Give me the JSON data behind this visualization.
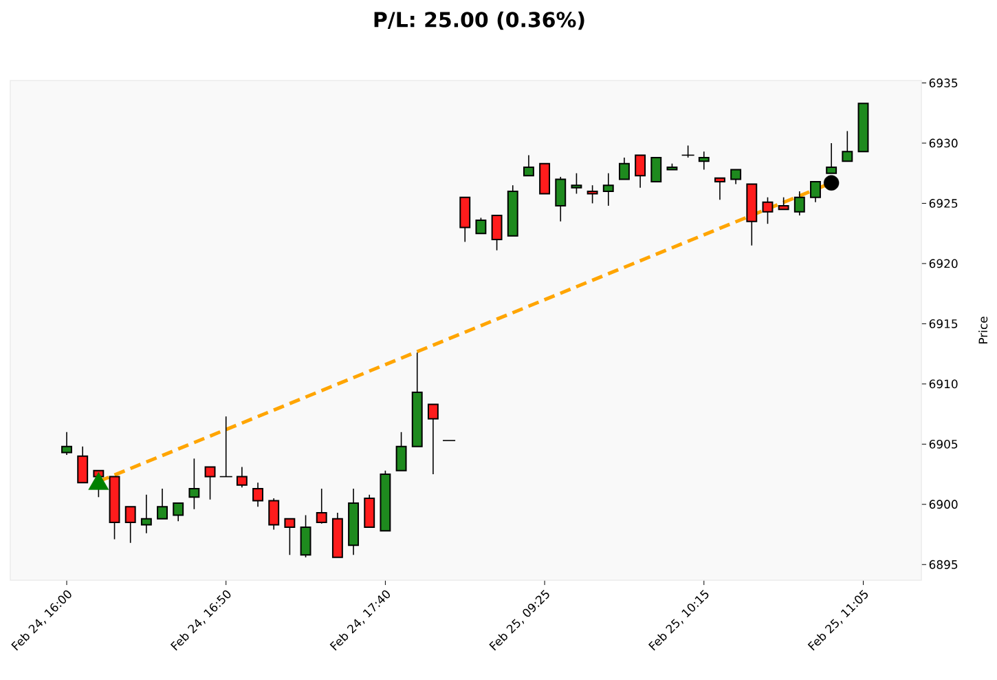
{
  "chart_data": {
    "type": "candlestick",
    "title": "P/L: 25.00 (0.36%)",
    "ylabel": "Price",
    "categories": [
      "Feb 24, 16:00",
      null,
      null,
      null,
      null,
      null,
      null,
      null,
      null,
      null,
      "Feb 24, 16:50",
      null,
      null,
      null,
      null,
      null,
      null,
      null,
      null,
      null,
      "Feb 24, 17:40",
      null,
      null,
      null,
      null,
      null,
      null,
      null,
      null,
      null,
      "Feb 25, 09:25",
      null,
      null,
      null,
      null,
      null,
      null,
      null,
      null,
      null,
      "Feb 25, 10:15",
      null,
      null,
      null,
      null,
      null,
      null,
      null,
      null,
      null,
      "Feb 25, 11:05"
    ],
    "ohlc": [
      [
        6904.3,
        6906.0,
        6904.1,
        6904.8
      ],
      [
        6904.0,
        6904.8,
        6901.8,
        6901.8
      ],
      [
        6902.8,
        6902.8,
        6900.6,
        6902.3
      ],
      [
        6902.3,
        6902.3,
        6897.1,
        6898.5
      ],
      [
        6899.8,
        6899.8,
        6896.8,
        6898.5
      ],
      [
        6898.3,
        6900.8,
        6897.6,
        6898.8
      ],
      [
        6898.8,
        6901.3,
        6898.8,
        6899.8
      ],
      [
        6899.1,
        6900.1,
        6898.6,
        6900.1
      ],
      [
        6900.6,
        6903.8,
        6899.6,
        6901.3
      ],
      [
        6903.1,
        6903.1,
        6900.4,
        6902.3
      ],
      [
        6902.3,
        6907.3,
        6902.3,
        6902.3
      ],
      [
        6902.3,
        6903.1,
        6901.4,
        6901.6
      ],
      [
        6901.3,
        6901.8,
        6899.8,
        6900.3
      ],
      [
        6900.3,
        6900.5,
        6897.9,
        6898.3
      ],
      [
        6898.8,
        6898.8,
        6895.8,
        6898.1
      ],
      [
        6895.8,
        6899.1,
        6895.6,
        6898.1
      ],
      [
        6899.3,
        6901.3,
        6898.4,
        6898.5
      ],
      [
        6898.8,
        6899.3,
        6895.6,
        6895.6
      ],
      [
        6896.6,
        6901.3,
        6895.8,
        6900.1
      ],
      [
        6900.5,
        6900.8,
        6898.1,
        6898.1
      ],
      [
        6897.8,
        6902.8,
        6897.8,
        6902.5
      ],
      [
        6902.8,
        6906.0,
        6902.8,
        6904.8
      ],
      [
        6904.8,
        6912.6,
        6904.8,
        6909.3
      ],
      [
        6908.3,
        6908.3,
        6902.5,
        6907.1
      ],
      [
        6905.3,
        6905.3,
        6905.3,
        6905.3
      ],
      [
        6925.5,
        6925.5,
        6921.8,
        6923.0
      ],
      [
        6922.5,
        6923.8,
        6922.5,
        6923.6
      ],
      [
        6924.0,
        6924.0,
        6921.1,
        6922.0
      ],
      [
        6922.3,
        6926.5,
        6922.3,
        6926.0
      ],
      [
        6927.3,
        6929.0,
        6927.3,
        6928.0
      ],
      [
        6928.3,
        6928.3,
        6925.8,
        6925.8
      ],
      [
        6924.8,
        6927.2,
        6923.5,
        6927.0
      ],
      [
        6926.3,
        6927.5,
        6925.8,
        6926.5
      ],
      [
        6926.0,
        6926.5,
        6925.0,
        6925.8
      ],
      [
        6926.0,
        6927.5,
        6924.8,
        6926.5
      ],
      [
        6927.0,
        6928.8,
        6927.0,
        6928.3
      ],
      [
        6929.0,
        6929.0,
        6926.3,
        6927.3
      ],
      [
        6926.8,
        6928.8,
        6926.8,
        6928.8
      ],
      [
        6927.8,
        6928.3,
        6927.8,
        6928.0
      ],
      [
        6929.0,
        6929.8,
        6928.8,
        6929.0
      ],
      [
        6928.5,
        6929.3,
        6927.8,
        6928.8
      ],
      [
        6927.1,
        6927.1,
        6925.3,
        6926.8
      ],
      [
        6927.0,
        6927.8,
        6926.6,
        6927.8
      ],
      [
        6926.6,
        6926.6,
        6921.5,
        6923.5
      ],
      [
        6925.1,
        6925.5,
        6923.3,
        6924.3
      ],
      [
        6924.8,
        6925.5,
        6924.5,
        6924.5
      ],
      [
        6924.3,
        6926.0,
        6924.0,
        6925.5
      ],
      [
        6925.5,
        6926.8,
        6925.1,
        6926.8
      ],
      [
        6927.5,
        6930.0,
        6927.5,
        6928.0
      ],
      [
        6928.5,
        6931.0,
        6928.5,
        6929.3
      ],
      [
        6929.3,
        6933.3,
        6929.3,
        6933.3
      ]
    ],
    "colors": [
      "#1e8a1e",
      "#ff1c1c",
      "#ff1c1c",
      "#ff1c1c",
      "#ff1c1c",
      "#1e8a1e",
      "#1e8a1e",
      "#1e8a1e",
      "#1e8a1e",
      "#ff1c1c",
      "#000000",
      "#ff1c1c",
      "#ff1c1c",
      "#ff1c1c",
      "#ff1c1c",
      "#1e8a1e",
      "#ff1c1c",
      "#ff1c1c",
      "#1e8a1e",
      "#ff1c1c",
      "#1e8a1e",
      "#1e8a1e",
      "#1e8a1e",
      "#ff1c1c",
      "#000000",
      "#ff1c1c",
      "#1e8a1e",
      "#ff1c1c",
      "#1e8a1e",
      "#1e8a1e",
      "#ff1c1c",
      "#1e8a1e",
      "#1e8a1e",
      "#ff1c1c",
      "#1e8a1e",
      "#1e8a1e",
      "#ff1c1c",
      "#1e8a1e",
      "#1e8a1e",
      "#000000",
      "#1e8a1e",
      "#ff1c1c",
      "#1e8a1e",
      "#ff1c1c",
      "#ff1c1c",
      "#ff1c1c",
      "#1e8a1e",
      "#1e8a1e",
      "#1e8a1e",
      "#1e8a1e",
      "#1e8a1e"
    ],
    "ylim": [
      6893.7,
      6935.2
    ],
    "yticks": [
      6895,
      6900,
      6905,
      6910,
      6915,
      6920,
      6925,
      6930,
      6935
    ],
    "series": [
      {
        "type": "line",
        "values": [
          null,
          null,
          6901.9,
          null,
          null,
          null,
          null,
          null,
          null,
          null,
          null,
          null,
          null,
          null,
          null,
          null,
          null,
          null,
          null,
          null,
          null,
          null,
          null,
          null,
          null,
          null,
          null,
          null,
          null,
          null,
          null,
          null,
          null,
          null,
          null,
          null,
          null,
          null,
          null,
          null,
          null,
          null,
          null,
          null,
          null,
          null,
          null,
          null,
          6926.7,
          null,
          null
        ],
        "color": "#ffa500",
        "line_style": "dashed"
      },
      {
        "type": "scatter",
        "values": [
          null,
          null,
          6901.7,
          null,
          null,
          null,
          null,
          null,
          null,
          null,
          null,
          null,
          null,
          null,
          null,
          null,
          null,
          null,
          null,
          null,
          null,
          null,
          null,
          null,
          null,
          null,
          null,
          null,
          null,
          null,
          null,
          null,
          null,
          null,
          null,
          null,
          null,
          null,
          null,
          null,
          null,
          null,
          null,
          null,
          null,
          null,
          null,
          null,
          null,
          null,
          null
        ],
        "color": "#008000",
        "marker": "triangle"
      },
      {
        "type": "scatter",
        "values": [
          null,
          null,
          null,
          null,
          null,
          null,
          null,
          null,
          null,
          null,
          null,
          null,
          null,
          null,
          null,
          null,
          null,
          null,
          null,
          null,
          null,
          null,
          null,
          null,
          null,
          null,
          null,
          null,
          null,
          null,
          null,
          null,
          null,
          null,
          null,
          null,
          null,
          null,
          null,
          null,
          null,
          null,
          null,
          null,
          null,
          null,
          null,
          null,
          6926.7,
          null,
          null
        ],
        "color": "#000000",
        "marker": "circle"
      }
    ]
  }
}
